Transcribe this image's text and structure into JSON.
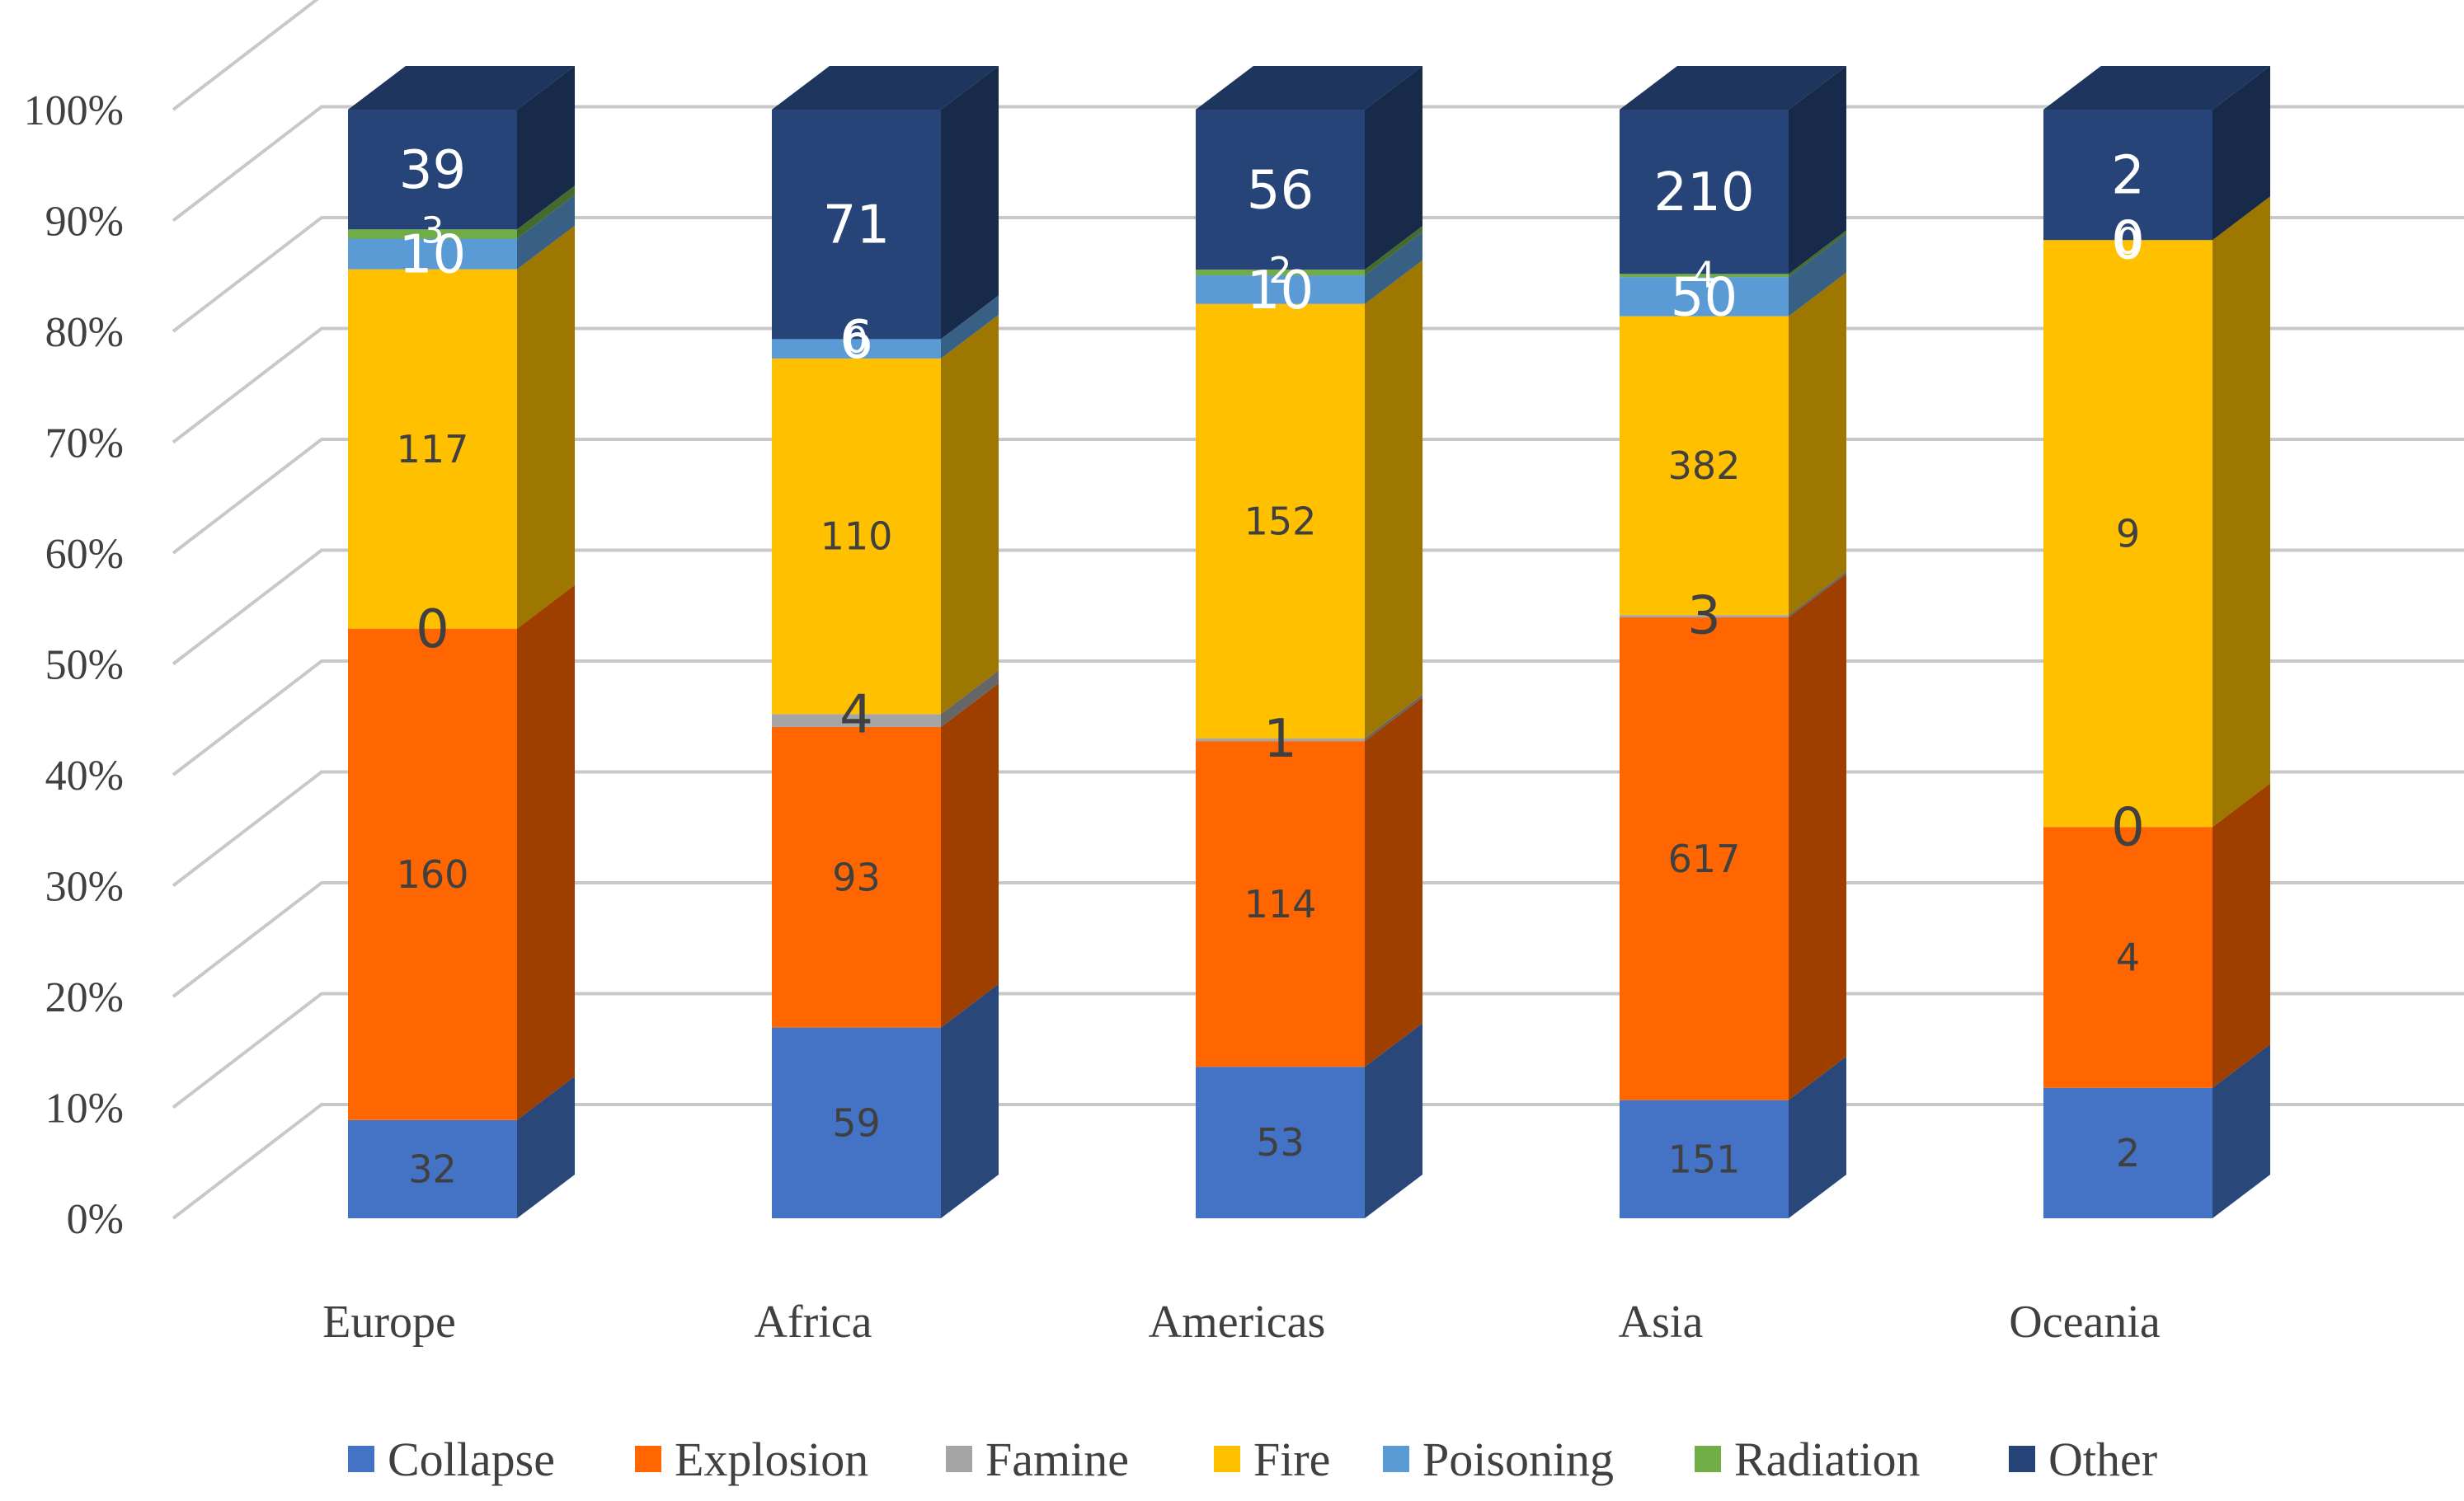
{
  "chart_data": {
    "type": "bar",
    "stacked": "percent",
    "three_d": true,
    "title": "",
    "xlabel": "",
    "ylabel": "",
    "ylim": [
      0,
      100
    ],
    "y_ticks": [
      "0%",
      "10%",
      "20%",
      "30%",
      "40%",
      "50%",
      "60%",
      "70%",
      "80%",
      "90%",
      "100%"
    ],
    "grid": true,
    "legend_position": "bottom",
    "categories": [
      "Europe",
      "Africa",
      "Americas",
      "Asia",
      "Oceania"
    ],
    "series": [
      {
        "name": "Collapse",
        "color": "#4472C4",
        "values": [
          32,
          59,
          53,
          151,
          2
        ]
      },
      {
        "name": "Explosion",
        "color": "#FF6600",
        "values": [
          160,
          93,
          114,
          617,
          4
        ]
      },
      {
        "name": "Famine",
        "color": "#A5A5A5",
        "values": [
          0,
          4,
          1,
          3,
          0
        ]
      },
      {
        "name": "Fire",
        "color": "#FFC000",
        "values": [
          117,
          110,
          152,
          382,
          9
        ]
      },
      {
        "name": "Poisoning",
        "color": "#5B9BD5",
        "values": [
          10,
          6,
          10,
          50,
          0
        ]
      },
      {
        "name": "Radiation",
        "color": "#70AD47",
        "values": [
          3,
          0,
          2,
          4,
          0
        ]
      },
      {
        "name": "Other",
        "color": "#264478",
        "values": [
          39,
          71,
          56,
          210,
          2
        ]
      }
    ]
  }
}
